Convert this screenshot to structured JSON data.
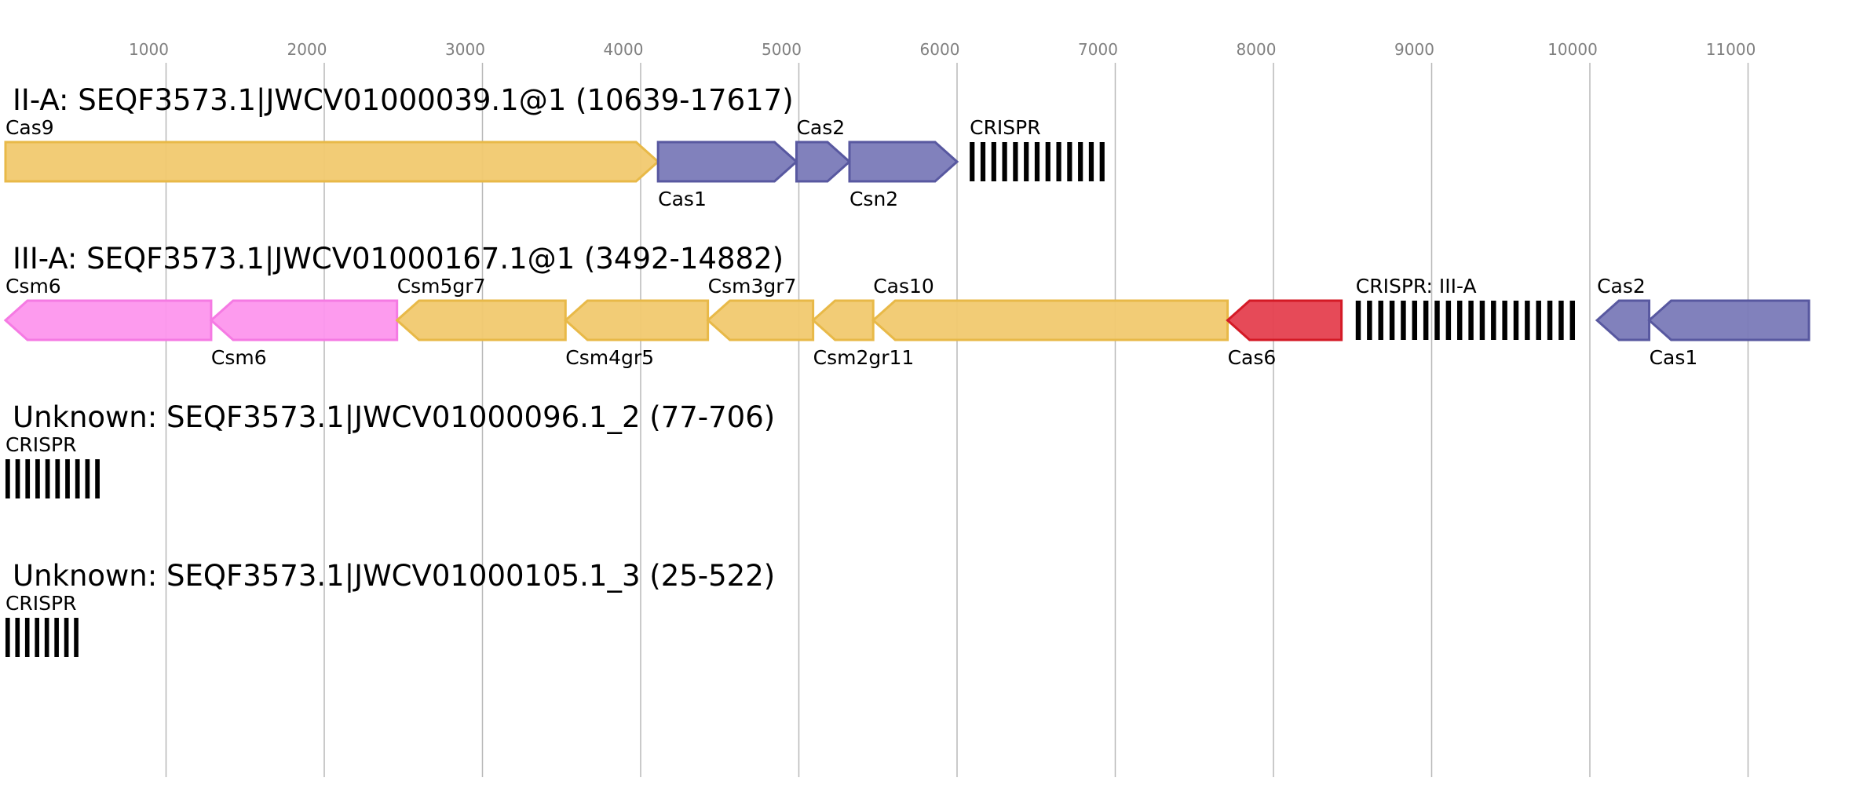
{
  "axis": {
    "ticks": [
      1000,
      2000,
      3000,
      4000,
      5000,
      6000,
      7000,
      8000,
      9000,
      10000,
      11000
    ],
    "tick_labels": [
      "1000",
      "2000",
      "3000",
      "4000",
      "5000",
      "6000",
      "7000",
      "8000",
      "9000",
      "10000",
      "11000"
    ]
  },
  "colors": {
    "yellow_fill": "#f1c96f",
    "yellow_stroke": "#e8b948",
    "blue_fill": "#7a7ab8",
    "blue_stroke": "#5858a0",
    "pink_fill": "#fd96ed",
    "pink_stroke": "#f57ae3",
    "red_fill": "#e5404f",
    "red_stroke": "#d41a26",
    "crispr": "#000000",
    "grid": "#b8b8b8"
  },
  "tracks": [
    {
      "title": "II-A: SEQF3573.1|JWCV01000039.1@1 (10639-17617)",
      "features": [
        {
          "label": "Cas9",
          "start": -15,
          "end": 4110,
          "strand": "+",
          "color": "yellow",
          "label_pos": "above"
        },
        {
          "label": "Cas1",
          "start": 4110,
          "end": 4985,
          "strand": "+",
          "color": "blue",
          "label_pos": "below"
        },
        {
          "label": "Cas2",
          "start": 4985,
          "end": 5320,
          "strand": "+",
          "color": "blue",
          "label_pos": "above"
        },
        {
          "label": "Csn2",
          "start": 5320,
          "end": 6000,
          "strand": "+",
          "color": "blue",
          "label_pos": "below"
        },
        {
          "label": "CRISPR",
          "start": 6080,
          "end": 6970,
          "type": "crispr",
          "repeats": 13,
          "label_pos": "above"
        }
      ]
    },
    {
      "title": "III-A: SEQF3573.1|JWCV01000167.1@1 (3492-14882)",
      "features": [
        {
          "label": "Csm6",
          "start": -15,
          "end": 1285,
          "strand": "-",
          "color": "pink",
          "label_pos": "above"
        },
        {
          "label": "Csm6",
          "start": 1285,
          "end": 2460,
          "strand": "-",
          "color": "pink",
          "label_pos": "below"
        },
        {
          "label": "Csm5gr7",
          "start": 2460,
          "end": 3525,
          "strand": "-",
          "color": "yellow",
          "label_pos": "above"
        },
        {
          "label": "Csm4gr5",
          "start": 3525,
          "end": 4425,
          "strand": "-",
          "color": "yellow",
          "label_pos": "below"
        },
        {
          "label": "Csm3gr7",
          "start": 4425,
          "end": 5090,
          "strand": "-",
          "color": "yellow",
          "label_pos": "above"
        },
        {
          "label": "Csm2gr11",
          "start": 5090,
          "end": 5470,
          "strand": "-",
          "color": "yellow",
          "label_pos": "below"
        },
        {
          "label": "Cas10",
          "start": 5470,
          "end": 7710,
          "strand": "-",
          "color": "yellow",
          "label_pos": "above"
        },
        {
          "label": "Cas6",
          "start": 7710,
          "end": 8430,
          "strand": "-",
          "color": "red",
          "label_pos": "below"
        },
        {
          "label": "CRISPR: III-A",
          "start": 8520,
          "end": 9945,
          "type": "crispr",
          "repeats": 20,
          "label_pos": "above"
        },
        {
          "label": "Cas2",
          "start": 10045,
          "end": 10375,
          "strand": "-",
          "color": "blue",
          "label_pos": "above"
        },
        {
          "label": "Cas1",
          "start": 10375,
          "end": 11385,
          "strand": "-",
          "color": "blue",
          "label_pos": "below"
        }
      ]
    },
    {
      "title": "Unknown: SEQF3573.1|JWCV01000096.1_2 (77-706)",
      "features": [
        {
          "label": "CRISPR",
          "start": -15,
          "end": 615,
          "type": "crispr",
          "repeats": 10,
          "label_pos": "above"
        }
      ]
    },
    {
      "title": "Unknown: SEQF3573.1|JWCV01000105.1_3 (25-522)",
      "features": [
        {
          "label": "CRISPR",
          "start": -15,
          "end": 480,
          "type": "crispr",
          "repeats": 8,
          "label_pos": "above"
        }
      ]
    }
  ]
}
